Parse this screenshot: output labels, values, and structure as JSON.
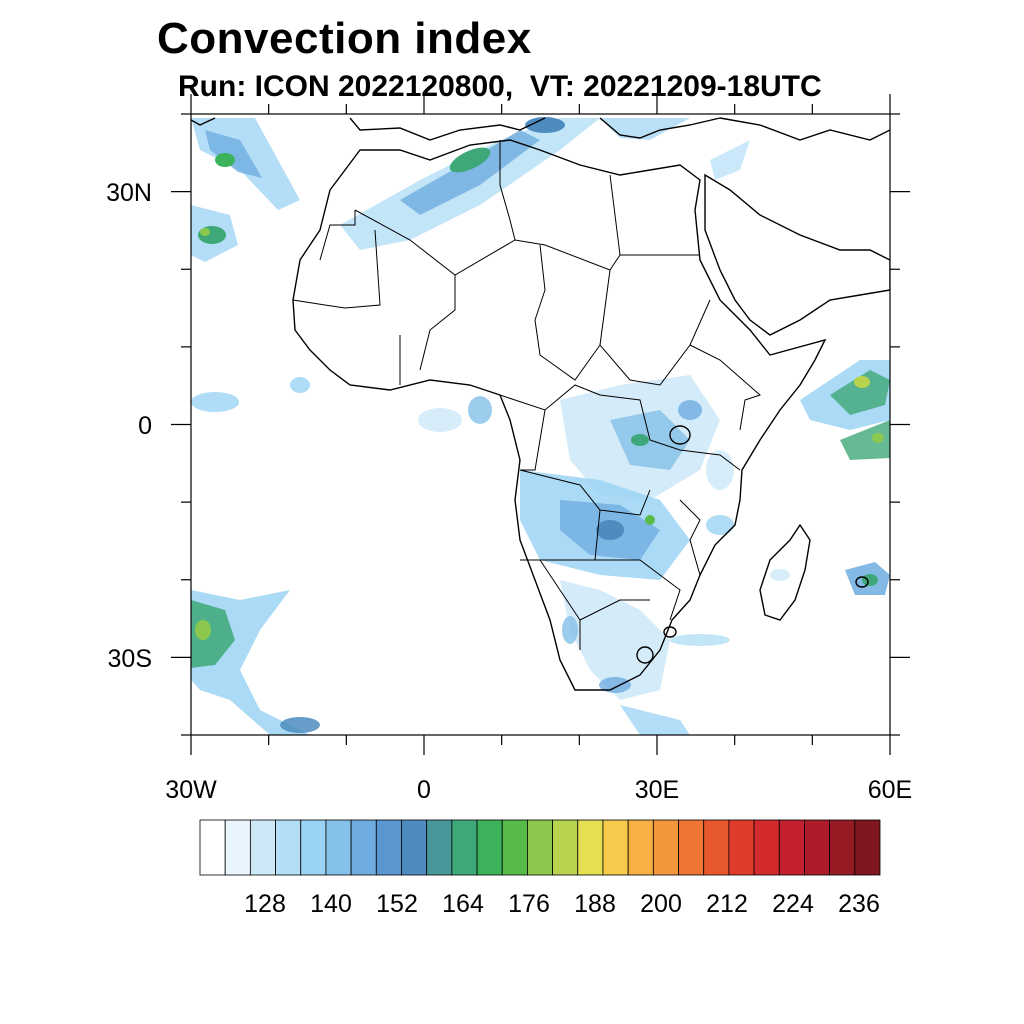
{
  "title": "Convection index",
  "subtitle": "Run: ICON 2022120800,  VT: 20221209-18UTC",
  "axes": {
    "x_ticks": [
      {
        "label": "30W",
        "lon": -30
      },
      {
        "label": "0",
        "lon": 0
      },
      {
        "label": "30E",
        "lon": 30
      },
      {
        "label": "60E",
        "lon": 60
      }
    ],
    "y_ticks": [
      {
        "label": "30N",
        "lat": 30
      },
      {
        "label": "0",
        "lat": 0
      },
      {
        "label": "30S",
        "lat": -30
      }
    ],
    "lon_range": [
      -30,
      60
    ],
    "lat_range": [
      -40,
      40
    ]
  },
  "colorbar": {
    "labels": [
      "128",
      "140",
      "152",
      "164",
      "176",
      "188",
      "200",
      "212",
      "224",
      "236"
    ],
    "colors": [
      "#ffffff",
      "#e8f5fc",
      "#cde9f8",
      "#b4def6",
      "#9bd3f4",
      "#85c0e8",
      "#6fade0",
      "#5a97d0",
      "#4e8cc0",
      "#48989a",
      "#3ea878",
      "#3cb35a",
      "#56bb48",
      "#8cc84e",
      "#b8d34e",
      "#e4e052",
      "#f6cb4c",
      "#f6b044",
      "#f3963c",
      "#ee7632",
      "#e8582e",
      "#e03c2c",
      "#d32a2e",
      "#c2202c",
      "#ad1c28",
      "#961a24",
      "#7f1620"
    ]
  }
}
